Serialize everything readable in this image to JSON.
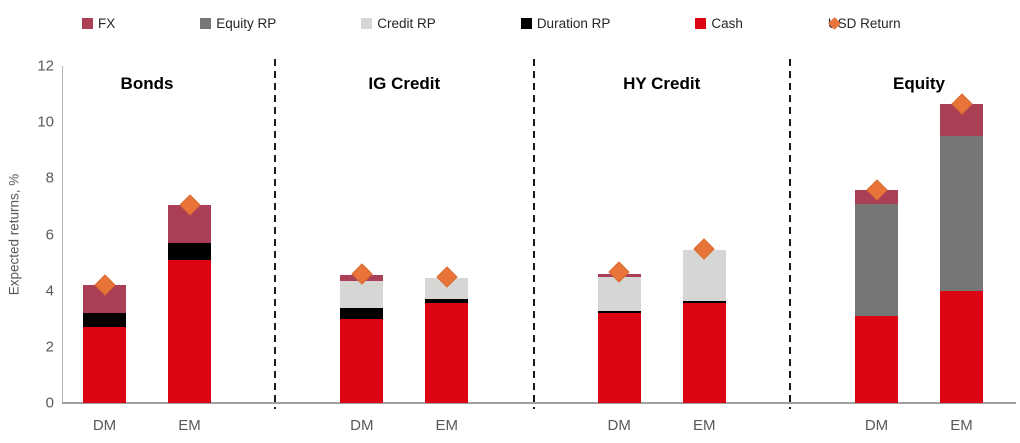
{
  "colors": {
    "fx": "#AA3F55",
    "equity_rp": "#767676",
    "credit_rp": "#D6D6D4",
    "duration_rp": "#000000",
    "cash": "#DD0413",
    "usd_return": "#E8743A",
    "usd_return_edge": "#D96A2E",
    "separator": "#1A1A1A",
    "axis_line": "#A0A0A0",
    "tick_text": "#595959",
    "legend_text": "#262626"
  },
  "legend": [
    {
      "label": "FX",
      "color_key": "fx",
      "shape": "square"
    },
    {
      "label": "Equity RP",
      "color_key": "equity_rp",
      "shape": "square"
    },
    {
      "label": "Credit RP",
      "color_key": "credit_rp",
      "shape": "square"
    },
    {
      "label": "Duration RP",
      "color_key": "duration_rp",
      "shape": "square"
    },
    {
      "label": "Cash",
      "color_key": "cash",
      "shape": "square"
    },
    {
      "label": "USD Return",
      "color_key": "usd_return",
      "shape": "diamond"
    }
  ],
  "chart_data": {
    "type": "bar",
    "stacked": true,
    "title": "",
    "xlabel": "",
    "ylabel": "Expected returns, %",
    "ylim": [
      0,
      12
    ],
    "yticks": [
      0,
      2,
      4,
      6,
      8,
      10,
      12
    ],
    "grid": false,
    "legend_position": "top",
    "stack_order": [
      "cash",
      "duration_rp",
      "credit_rp",
      "equity_rp",
      "fx"
    ],
    "marker_series_name": "USD Return",
    "groups": [
      {
        "title": "Bonds",
        "bars": [
          {
            "label": "DM",
            "segments": {
              "cash": 2.7,
              "duration_rp": 0.5,
              "fx": 1.0
            },
            "total": 4.2,
            "usd_return": 4.2
          },
          {
            "label": "EM",
            "segments": {
              "cash": 5.1,
              "duration_rp": 0.6,
              "fx": 1.35
            },
            "total": 7.05,
            "usd_return": 7.05
          }
        ]
      },
      {
        "title": "IG Credit",
        "bars": [
          {
            "label": "DM",
            "segments": {
              "cash": 3.0,
              "duration_rp": 0.4,
              "credit_rp": 0.95,
              "fx": 0.2
            },
            "total": 4.55,
            "usd_return": 4.6
          },
          {
            "label": "EM",
            "segments": {
              "cash": 3.55,
              "duration_rp": 0.15,
              "credit_rp": 0.75
            },
            "total": 4.45,
            "usd_return": 4.5
          }
        ]
      },
      {
        "title": "HY Credit",
        "bars": [
          {
            "label": "DM",
            "segments": {
              "cash": 3.2,
              "duration_rp": 0.07,
              "credit_rp": 1.23,
              "fx": 0.1
            },
            "total": 4.6,
            "usd_return": 4.65
          },
          {
            "label": "EM",
            "segments": {
              "cash": 3.55,
              "duration_rp": 0.07,
              "credit_rp": 1.83
            },
            "total": 5.45,
            "usd_return": 5.5
          }
        ]
      },
      {
        "title": "Equity",
        "bars": [
          {
            "label": "DM",
            "segments": {
              "cash": 3.1,
              "equity_rp": 4.0,
              "fx": 0.5
            },
            "total": 7.6,
            "usd_return": 7.6
          },
          {
            "label": "EM",
            "segments": {
              "cash": 4.0,
              "equity_rp": 5.5,
              "fx": 1.15
            },
            "total": 10.65,
            "usd_return": 10.65
          }
        ]
      }
    ]
  }
}
